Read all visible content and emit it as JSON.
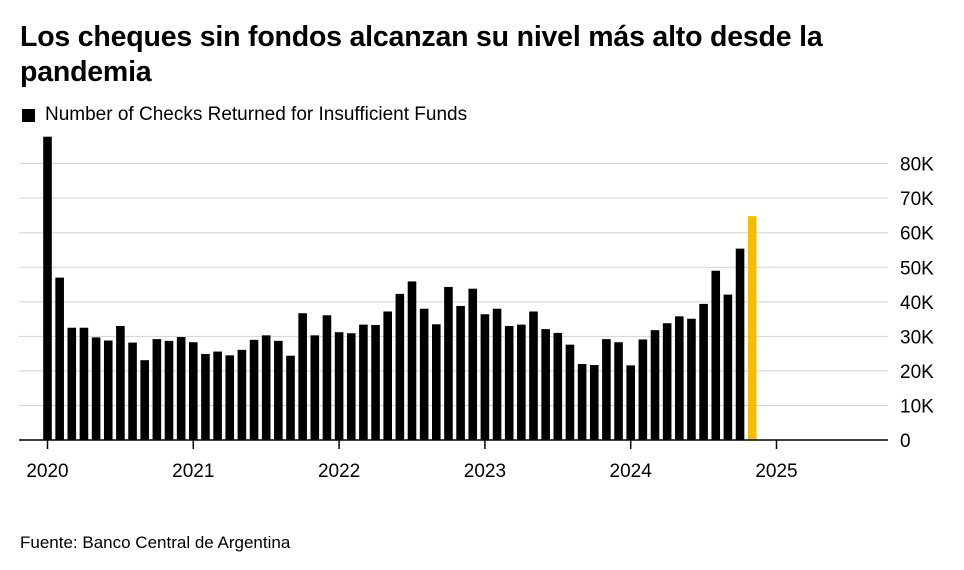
{
  "title": "Los cheques sin fondos alcanzan su nivel más alto desde la pandemia",
  "source": "Fuente: Banco Central de Argentina",
  "colors": {
    "bar": "#000000",
    "highlight": "#F5BD00",
    "grid": "#d3d3d3"
  },
  "chart_data": {
    "type": "bar",
    "series": [
      {
        "name": "Number of Checks Returned for Insufficient Funds",
        "values": [
          87800,
          47000,
          32500,
          32500,
          29700,
          28800,
          33000,
          28200,
          23100,
          29200,
          28700,
          29800,
          28300,
          24900,
          25600,
          24500,
          26100,
          29000,
          30300,
          28700,
          24400,
          36700,
          30300,
          36100,
          31200,
          30900,
          33400,
          33300,
          37200,
          42300,
          45900,
          38000,
          33500,
          44300,
          38800,
          43800,
          36400,
          38000,
          33000,
          33400,
          37200,
          32100,
          31000,
          27600,
          22000,
          21700,
          29200,
          28300,
          21600,
          29100,
          31800,
          33800,
          35800,
          35100,
          39400,
          49000,
          42100,
          55400,
          64800
        ]
      }
    ],
    "highlight_index": 58,
    "x_tick_labels": [
      {
        "index": 0,
        "label": "2020"
      },
      {
        "index": 12,
        "label": "2021"
      },
      {
        "index": 24,
        "label": "2022"
      },
      {
        "index": 36,
        "label": "2023"
      },
      {
        "index": 48,
        "label": "2024"
      },
      {
        "index": 60,
        "label": "2025"
      }
    ],
    "y_ticks": [
      0,
      10000,
      20000,
      30000,
      40000,
      50000,
      60000,
      70000,
      80000
    ],
    "y_tick_labels": [
      "0",
      "10K",
      "20K",
      "30K",
      "40K",
      "50K",
      "60K",
      "70K",
      "80K"
    ],
    "ylim": [
      0,
      88000
    ],
    "y_axis_side": "right",
    "legend": "top-left",
    "grid": true
  }
}
